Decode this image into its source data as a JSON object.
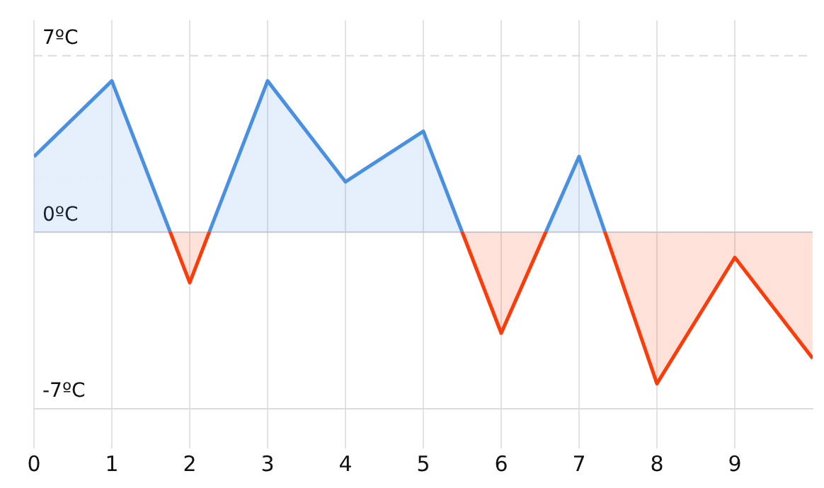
{
  "chart_data": {
    "type": "area",
    "x": [
      0,
      1,
      2,
      3,
      4,
      5,
      6,
      7,
      8,
      9,
      10
    ],
    "series": [
      {
        "color": "#4a90e2",
        "colors": [
          "#4a90e2",
          "#4a90e2",
          "#ff3b0a",
          "#4a90e2",
          "#4a90e2",
          "#4a90e2",
          "#ff3b0a",
          "#4a90e2",
          "#ff3b0a",
          "#ff3b0a",
          "#ff3b0a"
        ],
        "values": [
          3,
          6,
          -2,
          6,
          2,
          4,
          -4,
          3,
          -6,
          -1,
          -5
        ]
      }
    ],
    "xlim": [
      0,
      10
    ],
    "xticks": [
      0,
      1,
      2,
      3,
      4,
      5,
      6,
      7,
      8,
      9
    ],
    "ylim": [
      -7,
      8.4
    ],
    "yticks": [
      {
        "value": 7,
        "label": "7ºC"
      },
      {
        "value": 0,
        "label": "0ºC"
      },
      {
        "value": -7,
        "label": "-7ºC"
      }
    ],
    "grid": "x",
    "ref_lines": [
      {
        "axis": "y",
        "value": 7,
        "color": "#dcdcdc",
        "line_style": "dashed"
      },
      {
        "axis": "y",
        "value": 0,
        "color": "#c5d0de",
        "line_style": "solid"
      }
    ],
    "marker": "none",
    "line_style": "solid"
  }
}
